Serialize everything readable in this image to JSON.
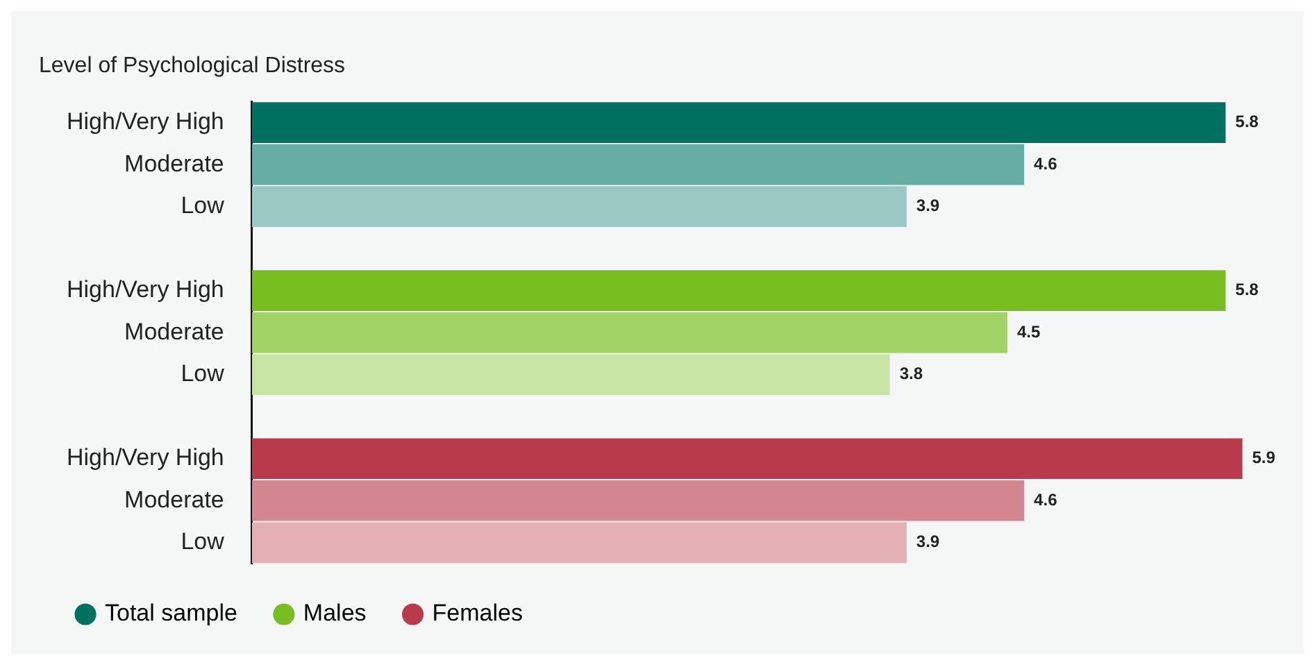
{
  "chart_data": {
    "type": "bar",
    "orientation": "horizontal",
    "stacked": true,
    "title": "Level of Psychological Distress",
    "categories": [
      "High/Very High",
      "Moderate",
      "Low",
      null,
      "High/Very High",
      "Moderate",
      "Low",
      null,
      "High/Very High",
      "Moderate",
      "Low"
    ],
    "series": [
      {
        "name": "Total sample",
        "color": "#007060",
        "colors": [
          "#007060",
          "#66ada3",
          "#99c9c2",
          null,
          null,
          null,
          null,
          null,
          null,
          null,
          null
        ],
        "values": [
          5.8,
          4.6,
          3.9,
          null,
          null,
          null,
          null,
          null,
          null,
          null,
          null
        ]
      },
      {
        "name": "Males",
        "color": "#78be20",
        "colors": [
          null,
          null,
          null,
          null,
          "#78be20",
          "#a1d266",
          "#c9e5a6",
          null,
          null,
          null,
          null
        ],
        "values": [
          null,
          null,
          null,
          null,
          5.8,
          4.5,
          3.8,
          null,
          null,
          null,
          null
        ]
      },
      {
        "name": "Females",
        "color": "#b83a4b",
        "colors": [
          null,
          null,
          null,
          null,
          null,
          null,
          null,
          null,
          "#b83a4b",
          "#d48690",
          "#e3b0b5"
        ],
        "values": [
          null,
          null,
          null,
          null,
          null,
          null,
          null,
          null,
          5.9,
          4.6,
          3.9
        ]
      }
    ],
    "data_labels": true,
    "tick_labels": "y",
    "grid": false,
    "legend": "bottom left"
  }
}
